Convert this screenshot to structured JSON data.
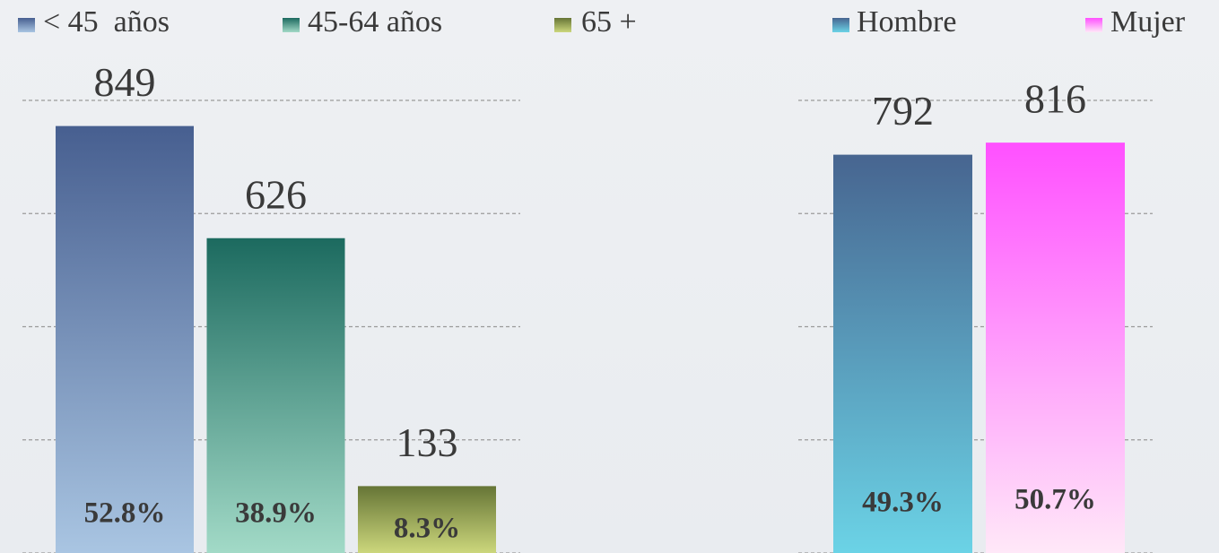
{
  "chart_data": [
    {
      "type": "bar",
      "categories": [
        "< 45  años",
        "45-64 años",
        "65 +"
      ],
      "values": [
        849,
        626,
        133
      ],
      "share_labels": [
        "52.8%",
        "38.9%",
        "8.3%"
      ],
      "colors": [
        [
          "#475f90",
          "#a9c5e2"
        ],
        [
          "#1c6a5f",
          "#a2dac7"
        ],
        [
          "#667536",
          "#ccd77c"
        ]
      ],
      "ylim": [
        0,
        900
      ],
      "yticks": [
        0,
        225,
        450,
        675,
        900
      ],
      "grid": true
    },
    {
      "type": "bar",
      "categories": [
        "Hombre",
        "Mujer"
      ],
      "values": [
        792,
        816
      ],
      "share_labels": [
        "49.3%",
        "50.7%"
      ],
      "colors": [
        [
          "#476590",
          "#6bd3e6"
        ],
        [
          "#ff50ff",
          "#ffe8f8"
        ]
      ],
      "ylim": [
        0,
        900
      ],
      "yticks": [
        0,
        225,
        450,
        675,
        900
      ],
      "grid": true
    }
  ]
}
